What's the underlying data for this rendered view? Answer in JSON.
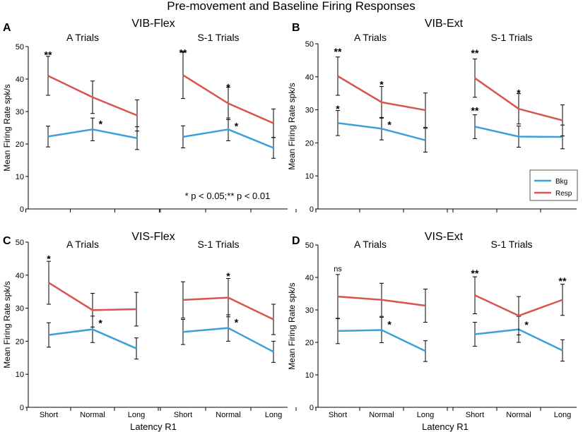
{
  "figure": {
    "title": "Pre-movement and Baseline Firing Responses",
    "footnote": "* p < 0.05;** p < 0.01",
    "colors": {
      "Bkg": "#3ca0d8",
      "Resp": "#d9534f"
    }
  },
  "chart_data": [
    {
      "type": "line",
      "panel": "A",
      "title": "VIB-Flex",
      "ylabel": "Mean Firing Rate spk/s",
      "xlabel": "",
      "ylim": [
        0,
        50
      ],
      "yticks": [
        0,
        10,
        20,
        30,
        40,
        50
      ],
      "subplots": [
        {
          "title": "A Trials",
          "categories": [
            "Short",
            "Normal",
            "Long"
          ],
          "series": [
            {
              "name": "Bkg",
              "values": [
                22.3,
                24.5,
                21.8
              ],
              "error": [
                3.2,
                3.5,
                3.5
              ]
            },
            {
              "name": "Resp",
              "values": [
                41,
                34.4,
                28.8
              ],
              "error": [
                6,
                5,
                4.8
              ]
            }
          ],
          "annotations": [
            {
              "text": "**",
              "x": "Short",
              "y": 48.2
            },
            {
              "text": "*",
              "x": "Normal",
              "y": 26.8,
              "dx": 0.18
            }
          ]
        },
        {
          "title": "S-1 Trials",
          "categories": [
            "Short",
            "Normal",
            "Long"
          ],
          "series": [
            {
              "name": "Bkg",
              "values": [
                22.2,
                24.5,
                18.8
              ],
              "error": [
                3.4,
                3.5,
                3.2
              ]
            },
            {
              "name": "Resp",
              "values": [
                41.2,
                32.5,
                26.4
              ],
              "error": [
                7.2,
                5,
                4.4
              ]
            }
          ],
          "annotations": [
            {
              "text": "**",
              "x": "Short",
              "y": 48.8
            },
            {
              "text": "*",
              "x": "Normal",
              "y": 38.2
            },
            {
              "text": "*",
              "x": "Normal",
              "y": 26.2,
              "dx": 0.18
            }
          ]
        }
      ]
    },
    {
      "type": "line",
      "panel": "B",
      "title": "VIB-Ext",
      "ylabel": "Mean Firing Rate spk/s",
      "xlabel": "",
      "ylim": [
        0,
        50
      ],
      "yticks": [
        0,
        10,
        20,
        30,
        40,
        50
      ],
      "subplots": [
        {
          "title": "A Trials",
          "categories": [
            "Short",
            "Normal",
            "Long"
          ],
          "series": [
            {
              "name": "Bkg",
              "values": [
                26,
                24.3,
                20.8
              ],
              "error": [
                3.8,
                3.4,
                3.6
              ]
            },
            {
              "name": "Resp",
              "values": [
                40.2,
                32.3,
                29.9
              ],
              "error": [
                5.8,
                4.8,
                5.2
              ]
            }
          ],
          "annotations": [
            {
              "text": "**",
              "x": "Short",
              "y": 48.3
            },
            {
              "text": "*",
              "x": "Short",
              "y": 31
            },
            {
              "text": "*",
              "x": "Normal",
              "y": 38.4
            },
            {
              "text": "*",
              "x": "Normal",
              "y": 26.2,
              "dx": 0.18
            }
          ]
        },
        {
          "title": "S-1 Trials",
          "categories": [
            "Short",
            "Normal",
            "Long"
          ],
          "series": [
            {
              "name": "Bkg",
              "values": [
                24.9,
                21.9,
                21.8
              ],
              "error": [
                3.6,
                3.2,
                3.6
              ]
            },
            {
              "name": "Resp",
              "values": [
                39.6,
                30.3,
                26.8
              ],
              "error": [
                5.8,
                4.6,
                4.7
              ]
            }
          ],
          "annotations": [
            {
              "text": "**",
              "x": "Short",
              "y": 47.9
            },
            {
              "text": "**",
              "x": "Short",
              "y": 30.4
            },
            {
              "text": "*",
              "x": "Normal",
              "y": 35.8
            }
          ]
        }
      ],
      "legend": {
        "placement": "right",
        "entries": [
          "Bkg",
          "Resp"
        ]
      }
    },
    {
      "type": "line",
      "panel": "C",
      "title": "VIS-Flex",
      "ylabel": "Mean Firing Rate spk/s",
      "xlabel": "Latency R1",
      "ylim": [
        0,
        50
      ],
      "yticks": [
        0,
        10,
        20,
        30,
        40,
        50
      ],
      "subplots": [
        {
          "title": "A Trials",
          "categories": [
            "Short",
            "Normal",
            "Long"
          ],
          "series": [
            {
              "name": "Bkg",
              "values": [
                21.9,
                23.6,
                17.8
              ],
              "error": [
                3.7,
                4,
                3.2
              ]
            },
            {
              "name": "Resp",
              "values": [
                37.7,
                29.4,
                29.7
              ],
              "error": [
                6.5,
                5.1,
                5.1
              ]
            }
          ],
          "annotations": [
            {
              "text": "*",
              "x": "Short",
              "y": 45.6
            },
            {
              "text": "*",
              "x": "Normal",
              "y": 26.2,
              "dx": 0.18
            }
          ]
        },
        {
          "title": "S-1 Trials",
          "categories": [
            "Short",
            "Normal",
            "Long"
          ],
          "series": [
            {
              "name": "Bkg",
              "values": [
                22.8,
                24,
                16.8
              ],
              "error": [
                3.8,
                4,
                3.2
              ]
            },
            {
              "name": "Resp",
              "values": [
                32.5,
                33.2,
                26.6
              ],
              "error": [
                5.5,
                5.8,
                4.6
              ]
            }
          ],
          "annotations": [
            {
              "text": "*",
              "x": "Normal",
              "y": 40.4
            },
            {
              "text": "*",
              "x": "Normal",
              "y": 26.4,
              "dx": 0.18
            }
          ]
        }
      ]
    },
    {
      "type": "line",
      "panel": "D",
      "title": "VIS-Ext",
      "ylabel": "Mean Firing Rate spk/s",
      "xlabel": "Latency R1",
      "ylim": [
        0,
        50
      ],
      "yticks": [
        0,
        10,
        20,
        30,
        40,
        50
      ],
      "subplots": [
        {
          "title": "A Trials",
          "categories": [
            "Short",
            "Normal",
            "Long"
          ],
          "series": [
            {
              "name": "Bkg",
              "values": [
                23.5,
                23.8,
                17.3
              ],
              "error": [
                3.9,
                3.9,
                3.2
              ]
            },
            {
              "name": "Resp",
              "values": [
                34.1,
                33.1,
                31.3
              ],
              "error": [
                6.8,
                5.1,
                5.1
              ]
            }
          ],
          "annotations": [
            {
              "text": "ns",
              "x": "Short",
              "y": 41.8
            },
            {
              "text": "*",
              "x": "Normal",
              "y": 26.2,
              "dx": 0.18
            }
          ]
        },
        {
          "title": "S-1 Trials",
          "categories": [
            "Short",
            "Normal",
            "Long"
          ],
          "series": [
            {
              "name": "Bkg",
              "values": [
                22.5,
                24,
                17.5
              ],
              "error": [
                3.7,
                4,
                3.3
              ]
            },
            {
              "name": "Resp",
              "values": [
                34.5,
                28.2,
                33.1
              ],
              "error": [
                5.7,
                5.9,
                4.8
              ]
            }
          ],
          "annotations": [
            {
              "text": "**",
              "x": "Short",
              "y": 42
            },
            {
              "text": "*",
              "x": "Normal",
              "y": 26.1,
              "dx": 0.18
            },
            {
              "text": "**",
              "x": "Long",
              "y": 39.6
            }
          ]
        }
      ]
    }
  ]
}
